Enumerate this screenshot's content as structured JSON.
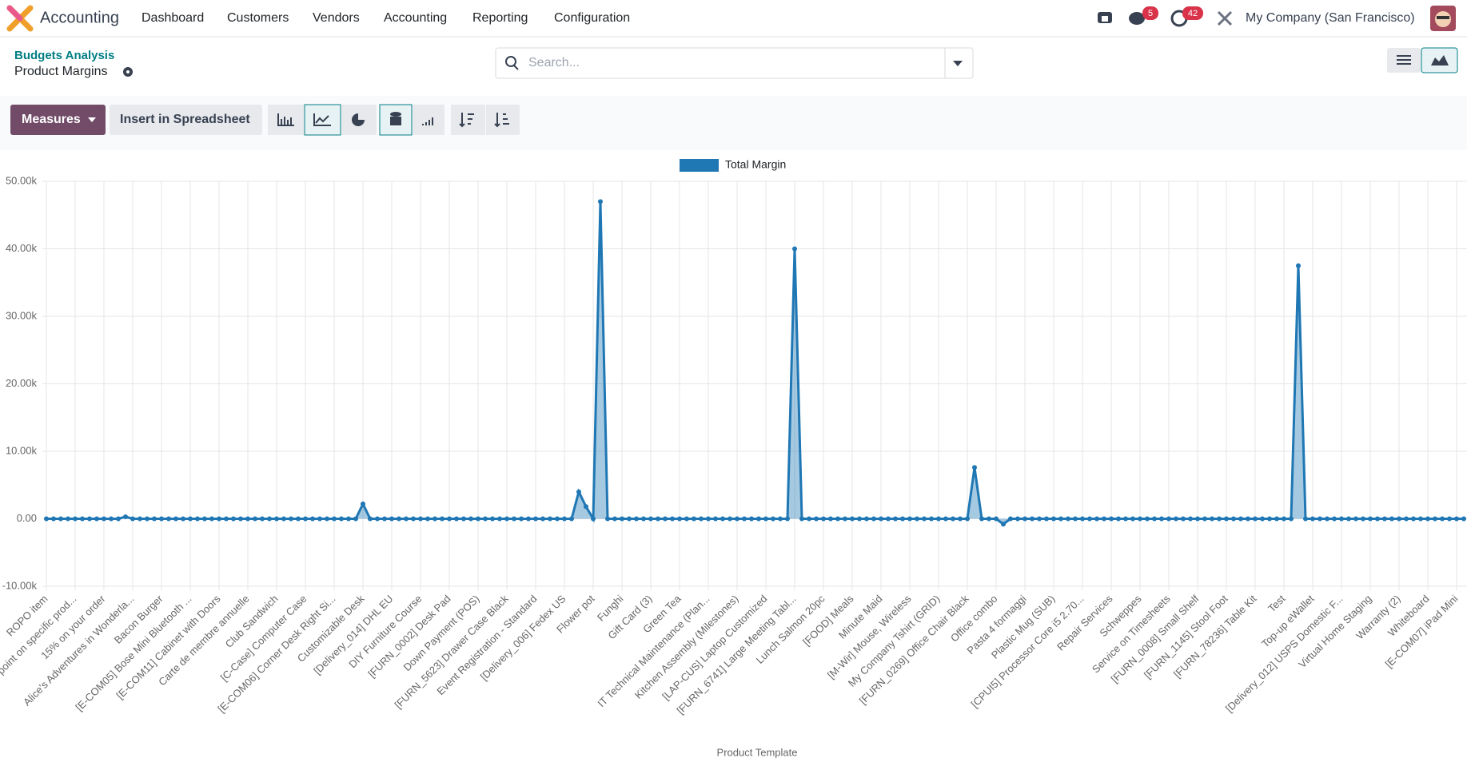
{
  "nav": {
    "app": "Accounting",
    "menu": [
      "Dashboard",
      "Customers",
      "Vendors",
      "Accounting",
      "Reporting",
      "Configuration"
    ],
    "chat_badge": "5",
    "activity_badge": "42",
    "company": "My Company (San Francisco)"
  },
  "control_panel": {
    "breadcrumb": "Budgets Analysis",
    "title": "Product Margins",
    "search_placeholder": "Search...",
    "measures": "Measures",
    "insert": "Insert in Spreadsheet"
  },
  "chart_data": {
    "type": "line",
    "x_label": "Product Template",
    "categories": [
      "ROPO item",
      null,
      null,
      null,
      "point on specific prod...",
      null,
      null,
      null,
      "15% on your order",
      null,
      null,
      null,
      "Alice's Adventures in Wonderla...",
      null,
      null,
      null,
      "Bacon Burger",
      null,
      null,
      null,
      "[E-COM05] Bose Mini Bluetooth ...",
      null,
      null,
      null,
      "[E-COM11] Cabinet with Doors",
      null,
      null,
      null,
      "Carte de membre annuelle",
      null,
      null,
      null,
      "Club Sandwich",
      null,
      null,
      null,
      "[C-Case] Computer Case",
      null,
      null,
      null,
      "[E-COM06] Corner Desk Right Si...",
      null,
      null,
      null,
      "Customizable Desk",
      null,
      null,
      null,
      "[Delivery_014] DHL EU",
      null,
      null,
      null,
      "DIY Furniture Course",
      null,
      null,
      null,
      "[FURN_0002] Desk Pad",
      null,
      null,
      null,
      "Down Payment (POS)",
      null,
      null,
      null,
      "[FURN_5623] Drawer Case Black",
      null,
      null,
      null,
      "Event Registration - Standard",
      null,
      null,
      null,
      "[Delivery_006] Fedex US",
      null,
      null,
      null,
      "Flower pot",
      null,
      null,
      null,
      "Funghi",
      null,
      null,
      null,
      "Gift Card (3)",
      null,
      null,
      null,
      "Green Tea",
      null,
      null,
      null,
      "IT Technical Maintenance (Plan...",
      null,
      null,
      null,
      "Kitchen Assembly (Milestones)",
      null,
      null,
      null,
      "[LAP-CUS] Laptop Customized",
      null,
      null,
      null,
      "[FURN_6741] Large Meeting Tabl...",
      null,
      null,
      null,
      "Lunch Salmon 20pc",
      null,
      null,
      null,
      "[FOOD] Meals",
      null,
      null,
      null,
      "Minute Maid",
      null,
      null,
      null,
      "[M-Wir] Mouse, Wireless",
      null,
      null,
      null,
      "My Company Tshirt (GRID)",
      null,
      null,
      null,
      "[FURN_0269] Office Chair Black",
      null,
      null,
      null,
      "Office combo",
      null,
      null,
      null,
      "Pasta 4 formaggi",
      null,
      null,
      null,
      "Plastic Mug (SUB)",
      null,
      null,
      null,
      "[CPUI5] Processor Core i5 2.70...",
      null,
      null,
      null,
      "Repair Services",
      null,
      null,
      null,
      "Schweppes",
      null,
      null,
      null,
      "Service on Timesheets",
      null,
      null,
      null,
      "[FURN_0008] Small Shelf",
      null,
      null,
      null,
      "[FURN_1145] Stool Foot",
      null,
      null,
      null,
      "[FURN_78236] Table Kit",
      null,
      null,
      null,
      "Test",
      null,
      null,
      null,
      "Top-up eWallet",
      null,
      null,
      null,
      "[Delivery_012] USPS Domestic F...",
      null,
      null,
      null,
      "Virtual Home Staging",
      null,
      null,
      null,
      "Warranty (2)",
      null,
      null,
      null,
      "Whiteboard",
      null,
      null,
      null,
      "[E-COM07] iPad Mini",
      null
    ],
    "series": [
      {
        "name": "Total Margin",
        "color": "#1f77b4",
        "values": [
          0,
          0,
          0,
          0,
          0,
          0,
          0,
          0,
          0,
          0,
          0,
          300,
          0,
          0,
          0,
          0,
          0,
          0,
          0,
          0,
          0,
          0,
          0,
          0,
          0,
          0,
          0,
          0,
          0,
          0,
          0,
          0,
          0,
          0,
          0,
          0,
          0,
          0,
          0,
          0,
          0,
          0,
          0,
          0,
          2200,
          0,
          0,
          0,
          0,
          0,
          0,
          0,
          0,
          0,
          0,
          0,
          0,
          0,
          0,
          0,
          0,
          0,
          0,
          0,
          0,
          0,
          0,
          0,
          0,
          0,
          0,
          0,
          0,
          0,
          4000,
          1800,
          0,
          47000,
          0,
          0,
          0,
          0,
          0,
          0,
          0,
          0,
          0,
          0,
          0,
          0,
          0,
          0,
          0,
          0,
          0,
          0,
          0,
          0,
          0,
          0,
          0,
          0,
          0,
          0,
          40000,
          0,
          0,
          0,
          0,
          0,
          0,
          0,
          0,
          0,
          0,
          0,
          0,
          0,
          0,
          0,
          0,
          0,
          0,
          0,
          0,
          0,
          0,
          0,
          0,
          7600,
          0,
          0,
          0,
          -800,
          0,
          0,
          0,
          0,
          0,
          0,
          0,
          0,
          0,
          0,
          0,
          0,
          0,
          0,
          0,
          0,
          0,
          0,
          0,
          0,
          0,
          0,
          0,
          0,
          0,
          0,
          0,
          0,
          0,
          0,
          0,
          0,
          0,
          0,
          0,
          0,
          0,
          0,
          0,
          0,
          37500,
          0,
          0,
          0,
          0,
          0,
          0,
          0,
          0,
          0,
          0,
          0,
          0,
          0,
          0,
          0,
          0,
          0,
          0,
          0,
          0,
          0,
          0,
          0
        ]
      }
    ],
    "ylim": [
      -10000,
      50000
    ],
    "yticks": [
      {
        "value": -10000,
        "label": "-10.00k"
      },
      {
        "value": 0,
        "label": "0.00"
      },
      {
        "value": 10000,
        "label": "10.00k"
      },
      {
        "value": 20000,
        "label": "20.00k"
      },
      {
        "value": 30000,
        "label": "30.00k"
      },
      {
        "value": 40000,
        "label": "40.00k"
      },
      {
        "value": 50000,
        "label": "50.00k"
      }
    ],
    "grid": true,
    "legend": "top",
    "area": true
  }
}
